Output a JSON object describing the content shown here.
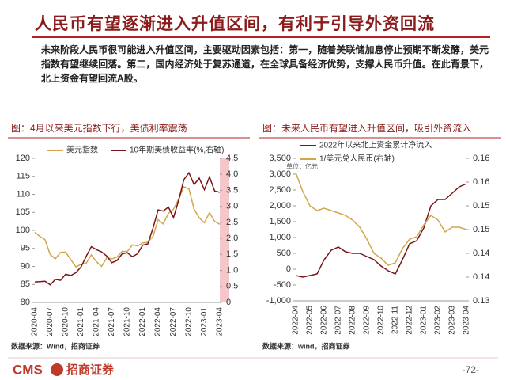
{
  "header": {
    "title": "人民币有望逐渐进入升值区间，有利于引导外资回流",
    "body": "未来阶段人民币很可能进入升值区间，主要驱动因素包括：第一，随着美联储加息停止预期不断发酵，美元指数有望继续回落。第二，国内经济处于复苏通道，在全球具备经济优势，支撑人民币升值。在此背景下，北上资金有望回流A股。"
  },
  "chart_data": [
    {
      "type": "line",
      "title": "图：4月以来美元指数下行，美债利率震荡",
      "source": "数据来源：Wind，招商证券",
      "categories": [
        "2020-04",
        null,
        null,
        "2020-07",
        null,
        null,
        "2020-10",
        null,
        null,
        "2021-01",
        null,
        null,
        "2021-04",
        null,
        null,
        "2021-07",
        null,
        null,
        "2021-10",
        null,
        null,
        "2022-01",
        null,
        null,
        "2022-04",
        null,
        null,
        "2022-07",
        null,
        null,
        "2022-10",
        null,
        null,
        "2023-01",
        null,
        null,
        "2023-04"
      ],
      "series": [
        {
          "name": "美元指数",
          "color": "#d2a64a",
          "values": [
            99.5,
            98.3,
            97.4,
            93.3,
            92.1,
            93.9,
            94.0,
            91.9,
            89.9,
            90.6,
            90.9,
            93.2,
            91.3,
            90.0,
            92.4,
            92.1,
            92.6,
            94.2,
            94.1,
            96.0,
            95.7,
            96.5,
            96.7,
            98.3,
            103.0,
            101.8,
            104.7,
            105.9,
            108.7,
            112.1,
            111.5,
            105.9,
            103.5,
            102.1,
            104.9,
            102.5,
            101.7
          ]
        },
        {
          "name": "10年期美债收益率(%,右轴)",
          "color": "#7b1416",
          "axis": "y2",
          "values": [
            0.64,
            0.65,
            0.66,
            0.55,
            0.72,
            0.69,
            0.88,
            0.84,
            0.93,
            1.11,
            1.44,
            1.74,
            1.65,
            1.58,
            1.45,
            1.24,
            1.31,
            1.52,
            1.55,
            1.43,
            1.52,
            1.79,
            1.83,
            2.32,
            2.89,
            2.85,
            2.98,
            2.65,
            3.19,
            3.83,
            4.05,
            3.68,
            3.88,
            3.52,
            3.92,
            3.48,
            3.44
          ]
        }
      ],
      "ylim": [
        80,
        120
      ],
      "yticks": [
        80,
        85,
        90,
        95,
        100,
        105,
        110,
        115,
        120
      ],
      "y2lim": [
        0,
        4.5
      ],
      "y2ticks": [
        0,
        0.5,
        {
          "value": 1,
          "label": "1.0"
        },
        1.5,
        {
          "value": 2,
          "label": "2.0"
        },
        2.5,
        {
          "value": 3,
          "label": "3.0"
        },
        3.5,
        {
          "value": 4,
          "label": "4.0"
        },
        4.5
      ]
    },
    {
      "type": "line",
      "title": "图：未来人民币有望进入升值区间，吸引外资流入",
      "source": "数据来源：wind，招商证券",
      "annotation": "单位：亿元",
      "categories": [
        "2022-04",
        null,
        "2022-05",
        null,
        "2022-06",
        null,
        "2022-07",
        null,
        "2022-08",
        null,
        "2022-09",
        null,
        "2022-10",
        null,
        "2022-11",
        null,
        "2022-12",
        null,
        "2023-01",
        null,
        "2023-02",
        null,
        "2023-03",
        null,
        "2023-04"
      ],
      "series": [
        {
          "name": "2022年以来北上资金累计净流入",
          "color": "#7b1416",
          "values": [
            -200,
            -250,
            -200,
            -150,
            300,
            600,
            700,
            550,
            500,
            500,
            400,
            300,
            100,
            -50,
            -150,
            300,
            800,
            900,
            1300,
            2000,
            2200,
            2200,
            2400,
            2600,
            2700
          ]
        },
        {
          "name": "1/美元兑人民币(右轴)",
          "color": "#d2a64a",
          "axis": "y2",
          "values": [
            0.157,
            0.153,
            0.15,
            0.149,
            0.1495,
            0.149,
            0.1485,
            0.148,
            0.147,
            0.1455,
            0.143,
            0.14,
            0.139,
            0.1375,
            0.138,
            0.141,
            0.143,
            0.1435,
            0.146,
            0.148,
            0.147,
            0.1445,
            0.1455,
            0.1455,
            0.145
          ]
        }
      ],
      "ylim": [
        -1000,
        3500
      ],
      "yticks": [
        {
          "value": -1000,
          "label": "-1,000"
        },
        -500,
        0,
        500,
        {
          "value": 1000,
          "label": "1,000"
        },
        {
          "value": 1500,
          "label": "1,500"
        },
        {
          "value": 2000,
          "label": "2,000"
        },
        {
          "value": 2500,
          "label": "2,500"
        },
        {
          "value": 3000,
          "label": "3,000"
        },
        {
          "value": 3500,
          "label": "3,500"
        }
      ],
      "y2lim": [
        0.13,
        0.16
      ],
      "y2ticks": [
        0.13,
        {
          "value": 0.135,
          "label": "0.14"
        },
        0.14,
        {
          "value": 0.145,
          "label": "0.15"
        },
        0.15,
        {
          "value": 0.155,
          "label": "0.16"
        },
        0.16
      ]
    }
  ],
  "footer": {
    "logo": "CMS",
    "company": "招商证券",
    "page": "-72-"
  }
}
